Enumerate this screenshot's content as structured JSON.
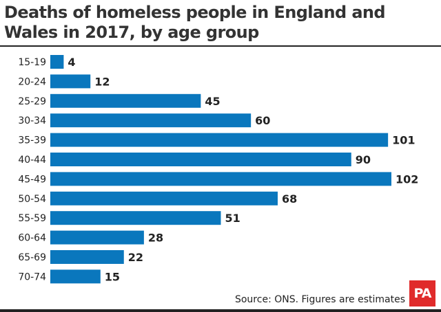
{
  "chart_data": {
    "type": "bar",
    "orientation": "horizontal",
    "title": "Deaths of homeless people in England and Wales in 2017, by age group",
    "categories": [
      "15-19",
      "20-24",
      "25-29",
      "30-34",
      "35-39",
      "40-44",
      "45-49",
      "50-54",
      "55-59",
      "60-64",
      "65-69",
      "70-74"
    ],
    "values": [
      4,
      12,
      45,
      60,
      101,
      90,
      102,
      68,
      51,
      28,
      22,
      15
    ],
    "xlim": [
      0,
      102
    ],
    "grid": false,
    "data_labels": true,
    "bar_color": "#0a77bd"
  },
  "source": "Source: ONS. Figures are estimates",
  "logo": "PA",
  "logo_color": "#e02b2b"
}
